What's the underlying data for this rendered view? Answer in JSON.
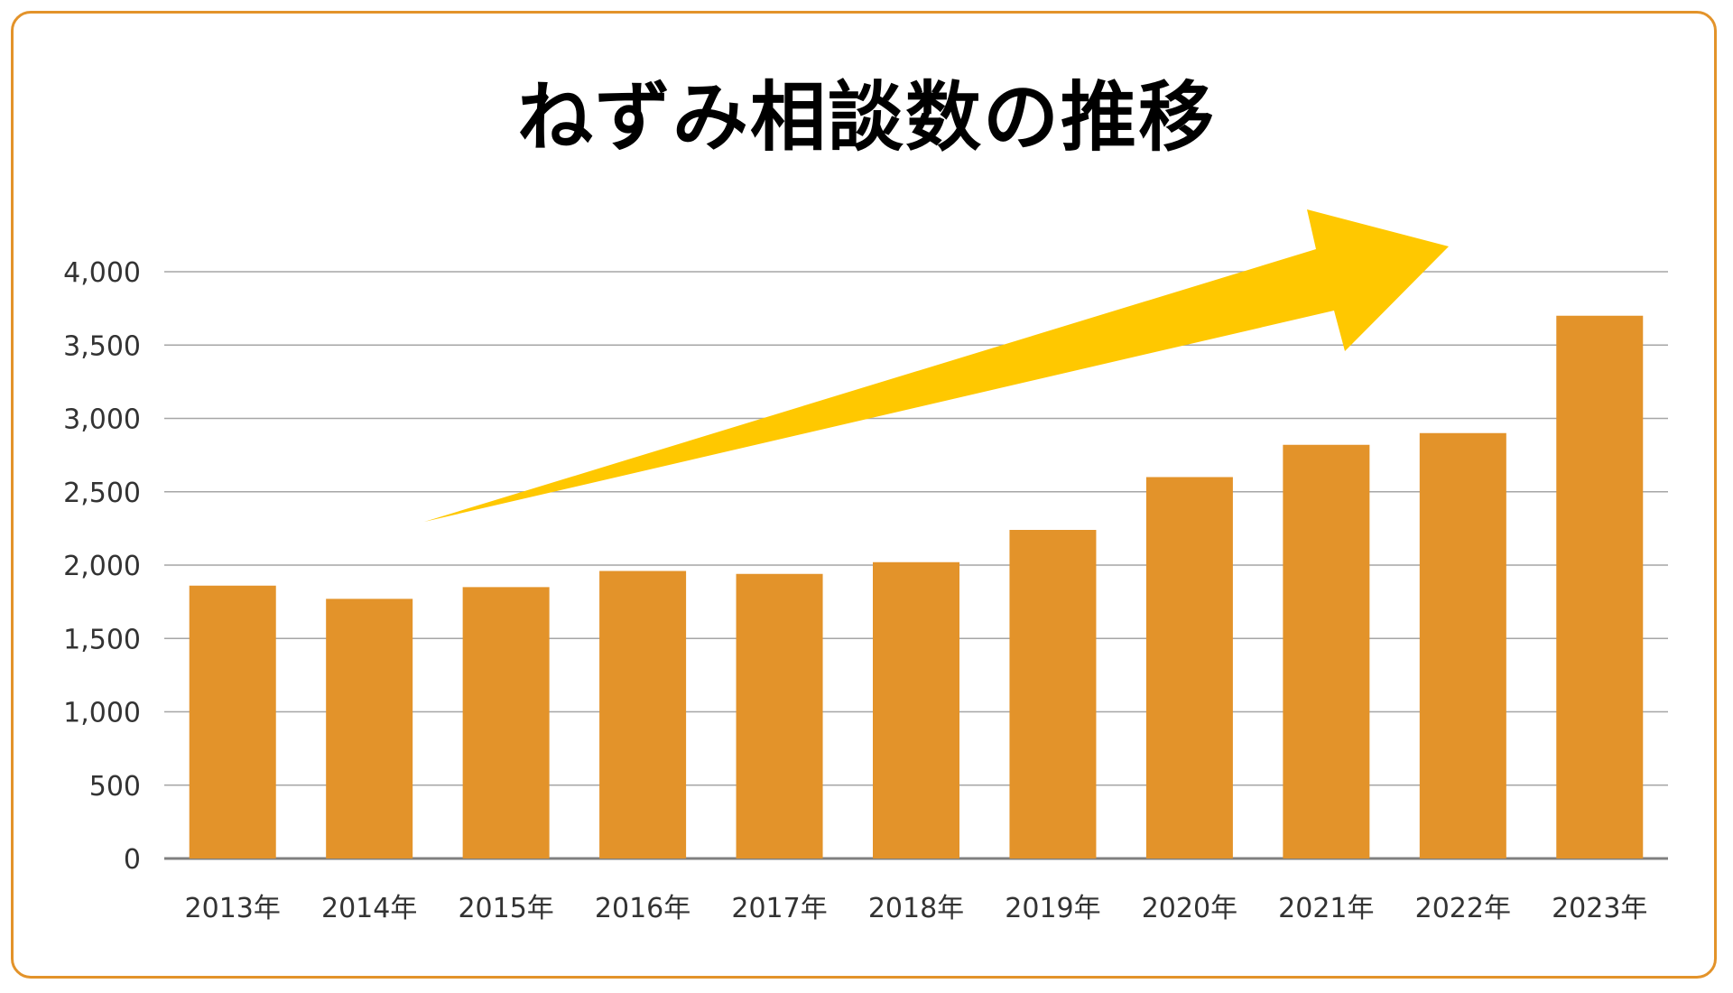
{
  "chart_data": {
    "type": "bar",
    "title": "ねずみ相談数の推移",
    "categories": [
      "2013年",
      "2014年",
      "2015年",
      "2016年",
      "2017年",
      "2018年",
      "2019年",
      "2020年",
      "2021年",
      "2022年",
      "2023年"
    ],
    "values": [
      1860,
      1770,
      1850,
      1960,
      1940,
      2020,
      2240,
      2600,
      2820,
      2900,
      3700
    ],
    "yticks": [
      "0",
      "500",
      "1,000",
      "1,500",
      "2,000",
      "2,500",
      "3,000",
      "3,500",
      "4,000"
    ],
    "ylim": [
      0,
      4000
    ],
    "xlabel": "",
    "ylabel": "",
    "grid": true,
    "legend": "none",
    "colors": {
      "bar": "#e3932a",
      "frame": "#e3932a",
      "arrow": "#ffc800",
      "grid": "#a6a6a6",
      "axis": "#808080"
    }
  }
}
